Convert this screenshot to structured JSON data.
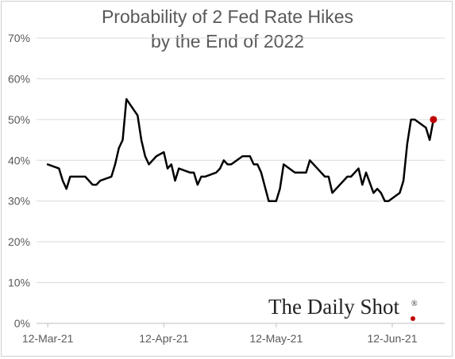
{
  "chart_data": {
    "type": "line",
    "title": "Probability of 2 Fed Rate Hikes by the End of 2022",
    "title_lines": [
      "Probability of 2 Fed Rate Hikes",
      "by the End of 2022"
    ],
    "xlabel": "",
    "ylabel": "",
    "ylim": [
      0,
      70
    ],
    "y_ticks": [
      0,
      10,
      20,
      30,
      40,
      50,
      60,
      70
    ],
    "y_tick_labels": [
      "0%",
      "10%",
      "20%",
      "30%",
      "40%",
      "50%",
      "60%",
      "70%"
    ],
    "x_ticks": [
      "2021-03-12",
      "2021-04-12",
      "2021-05-12",
      "2021-06-12"
    ],
    "x_tick_labels": [
      "12-Mar-21",
      "12-Apr-21",
      "12-May-21",
      "12-Jun-21"
    ],
    "xlim": [
      "2021-03-09",
      "2021-06-26"
    ],
    "grid": "horizontal",
    "line_color": "#000000",
    "endpoint_marker_color": "#c00000",
    "series": [
      {
        "x": [
          "2021-03-12",
          "2021-03-15",
          "2021-03-16",
          "2021-03-17",
          "2021-03-18",
          "2021-03-19",
          "2021-03-22",
          "2021-03-23",
          "2021-03-24",
          "2021-03-25",
          "2021-03-26",
          "2021-03-29",
          "2021-03-30",
          "2021-03-31",
          "2021-04-01",
          "2021-04-02",
          "2021-04-05",
          "2021-04-06",
          "2021-04-07",
          "2021-04-08",
          "2021-04-09",
          "2021-04-10",
          "2021-04-12",
          "2021-04-13",
          "2021-04-14",
          "2021-04-15",
          "2021-04-16",
          "2021-04-19",
          "2021-04-20",
          "2021-04-21",
          "2021-04-22",
          "2021-04-23",
          "2021-04-26",
          "2021-04-27",
          "2021-04-28",
          "2021-04-29",
          "2021-04-30",
          "2021-05-03",
          "2021-05-04",
          "2021-05-05",
          "2021-05-06",
          "2021-05-07",
          "2021-05-08",
          "2021-05-10",
          "2021-05-11",
          "2021-05-12",
          "2021-05-13",
          "2021-05-14",
          "2021-05-17",
          "2021-05-18",
          "2021-05-19",
          "2021-05-20",
          "2021-05-21",
          "2021-05-24",
          "2021-05-25",
          "2021-05-26",
          "2021-05-27",
          "2021-05-28",
          "2021-05-31",
          "2021-06-01",
          "2021-06-02",
          "2021-06-03",
          "2021-06-04",
          "2021-06-05",
          "2021-06-07",
          "2021-06-08",
          "2021-06-09",
          "2021-06-10",
          "2021-06-11",
          "2021-06-14",
          "2021-06-15",
          "2021-06-16",
          "2021-06-17",
          "2021-06-18",
          "2021-06-21",
          "2021-06-22",
          "2021-06-23"
        ],
        "values": [
          39,
          38,
          35,
          33,
          36,
          36,
          36,
          35,
          34,
          34,
          35,
          36,
          39,
          43,
          45,
          55,
          51,
          45,
          41,
          39,
          40,
          41,
          42,
          38,
          39,
          35,
          38,
          37,
          37,
          34,
          36,
          36,
          37,
          38,
          40,
          39,
          39,
          41,
          41,
          41,
          39,
          39,
          37,
          30,
          30,
          30,
          33,
          39,
          37,
          37,
          37,
          37,
          40,
          37,
          36,
          36,
          32,
          33,
          36,
          36,
          37,
          38,
          34,
          37,
          32,
          33,
          32,
          30,
          30,
          32,
          35,
          44,
          50,
          50,
          48,
          45,
          50
        ]
      }
    ],
    "last_point_highlighted": true
  },
  "watermark": {
    "text": "The Daily Shot",
    "mark": "®"
  }
}
